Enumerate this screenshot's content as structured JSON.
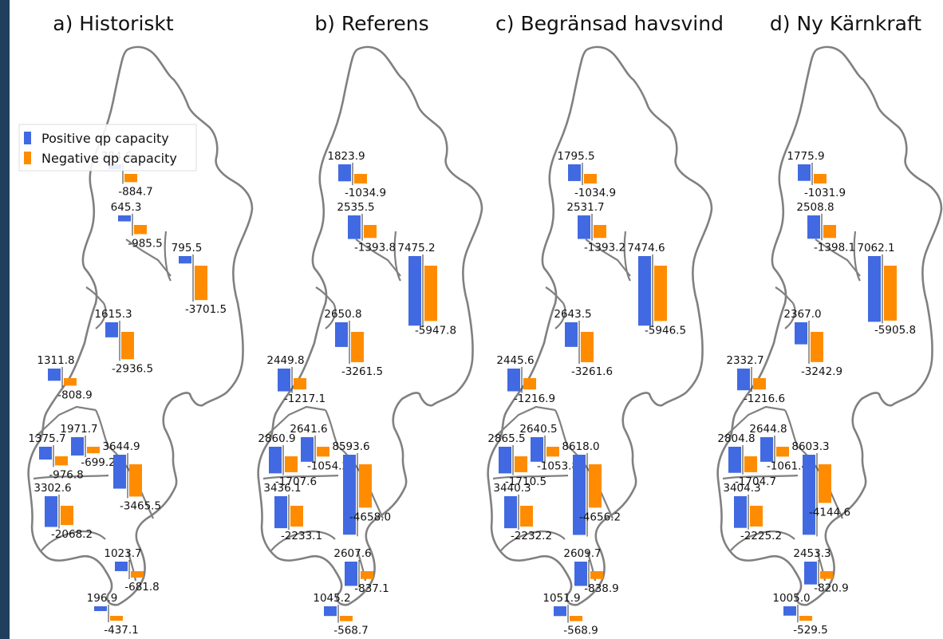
{
  "chart_data": {
    "type": "bar",
    "panels": [
      {
        "title": "a) Historiskt",
        "zones": [
          {
            "pos": "384.6",
            "neg": "-884.7"
          },
          {
            "pos": "645.3",
            "neg": "-985.5"
          },
          {
            "pos": "795.5",
            "neg": "-3701.5"
          },
          {
            "pos": "1615.3",
            "neg": "-2936.5"
          },
          {
            "pos": "1311.8",
            "neg": "-808.9"
          },
          {
            "pos": "1375.7",
            "neg": "-976.8"
          },
          {
            "pos": "1971.7",
            "neg": "-699.2"
          },
          {
            "pos": "3644.9",
            "neg": "-3465.5"
          },
          {
            "pos": "3302.6",
            "neg": "-2068.2"
          },
          {
            "pos": "1023.7",
            "neg": "-681.8"
          },
          {
            "pos": "196.9",
            "neg": "-437.1"
          }
        ]
      },
      {
        "title": "b) Referens",
        "zones": [
          {
            "pos": "1823.9",
            "neg": "-1034.9"
          },
          {
            "pos": "2535.5",
            "neg": "-1393.8"
          },
          {
            "pos": "7475.2",
            "neg": "-5947.8"
          },
          {
            "pos": "2650.8",
            "neg": "-3261.5"
          },
          {
            "pos": "2449.8",
            "neg": "-1217.1"
          },
          {
            "pos": "2860.9",
            "neg": "-1707.6"
          },
          {
            "pos": "2641.6",
            "neg": "-1054.2"
          },
          {
            "pos": "8593.6",
            "neg": "-4658.0"
          },
          {
            "pos": "3436.1",
            "neg": "-2233.1"
          },
          {
            "pos": "2607.6",
            "neg": "-837.1"
          },
          {
            "pos": "1045.2",
            "neg": "-568.7"
          }
        ]
      },
      {
        "title": "c) Begränsad havsvind",
        "zones": [
          {
            "pos": "1795.5",
            "neg": "-1034.9"
          },
          {
            "pos": "2531.7",
            "neg": "-1393.2"
          },
          {
            "pos": "7474.6",
            "neg": "-5946.5"
          },
          {
            "pos": "2643.5",
            "neg": "-3261.6"
          },
          {
            "pos": "2445.6",
            "neg": "-1216.9"
          },
          {
            "pos": "2865.5",
            "neg": "-1710.5"
          },
          {
            "pos": "2640.5",
            "neg": "-1053.8"
          },
          {
            "pos": "8618.0",
            "neg": "-4656.2"
          },
          {
            "pos": "3440.3",
            "neg": "-2232.2"
          },
          {
            "pos": "2609.7",
            "neg": "-838.9"
          },
          {
            "pos": "1051.9",
            "neg": "-568.9"
          }
        ]
      },
      {
        "title": "d) Ny Kärnkraft",
        "zones": [
          {
            "pos": "1775.9",
            "neg": "-1031.9"
          },
          {
            "pos": "2508.8",
            "neg": "-1398.1"
          },
          {
            "pos": "7062.1",
            "neg": "-5905.8"
          },
          {
            "pos": "2367.0",
            "neg": "-3242.9"
          },
          {
            "pos": "2332.7",
            "neg": "-1216.6"
          },
          {
            "pos": "2804.8",
            "neg": "-1704.7"
          },
          {
            "pos": "2644.8",
            "neg": "-1061.4"
          },
          {
            "pos": "8603.3",
            "neg": "-4144.6"
          },
          {
            "pos": "3404.3",
            "neg": "-2225.2"
          },
          {
            "pos": "2453.3",
            "neg": "-820.9"
          },
          {
            "pos": "1005.0",
            "neg": "-529.5"
          }
        ]
      }
    ],
    "legend": {
      "placement": "left, upper part of panel a",
      "entries": [
        {
          "label": "Positive qp capacity",
          "color": "#4169e1"
        },
        {
          "label": "Negative qp capacity",
          "color": "#ff8c00"
        }
      ]
    },
    "colors": {
      "positive": "#4169e1",
      "negative": "#ff8c00",
      "map_outline": "#808080"
    }
  }
}
